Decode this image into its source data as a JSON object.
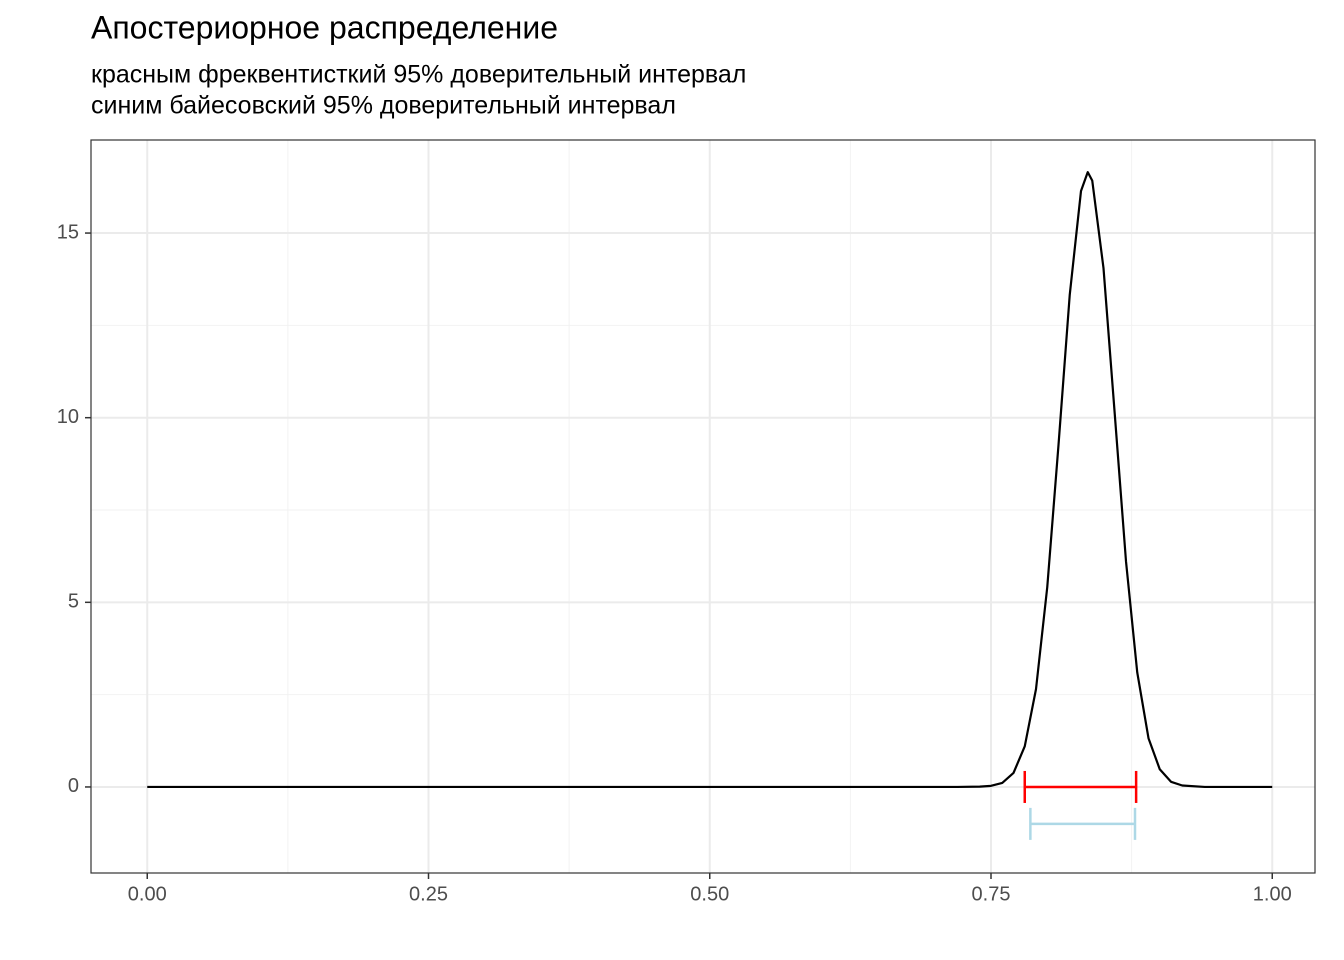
{
  "chart_data": {
    "type": "line",
    "title": "Апостериорное распределение",
    "subtitle": [
      "красным фреквентисткий 95% доверительный интервал",
      "синим байесовский 95% доверительный интервал"
    ],
    "x": [
      0,
      0.1,
      0.2,
      0.3,
      0.4,
      0.5,
      0.6,
      0.7,
      0.72,
      0.74,
      0.75,
      0.76,
      0.77,
      0.78,
      0.79,
      0.8,
      0.81,
      0.82,
      0.83,
      0.836,
      0.84,
      0.85,
      0.86,
      0.87,
      0.88,
      0.89,
      0.9,
      0.91,
      0.92,
      0.94,
      0.96,
      1
    ],
    "series": [
      {
        "color": "#000000",
        "values": [
          0,
          0,
          0,
          0,
          0,
          0,
          0,
          0,
          0,
          0.01,
          0.03,
          0.11,
          0.38,
          1.1,
          2.65,
          5.41,
          9.26,
          13.33,
          16.14,
          16.65,
          16.42,
          14.05,
          10.1,
          6.11,
          3.1,
          1.32,
          0.48,
          0.14,
          0.04,
          0,
          0,
          0
        ]
      }
    ],
    "intervals": [
      {
        "color": "#ff0000",
        "y": 0,
        "low": 0.78,
        "high": 0.879
      },
      {
        "color": "#add8e6",
        "y": -1,
        "low": 0.785,
        "high": 0.878
      }
    ],
    "xlim": [
      -0.05,
      1.038
    ],
    "ylim": [
      -2.33,
      17.52
    ],
    "xticks": [
      {
        "value": 0,
        "label": "0.00"
      },
      0.25,
      {
        "value": 0.5,
        "label": "0.50"
      },
      0.75,
      {
        "value": 1,
        "label": "1.00"
      }
    ],
    "yticks": [
      0,
      5,
      10,
      15
    ],
    "x_minor_ticks": [
      0.125,
      0.375,
      0.625,
      0.875
    ],
    "y_minor_ticks": [
      2.5,
      7.5,
      12.5
    ],
    "grid": true
  }
}
